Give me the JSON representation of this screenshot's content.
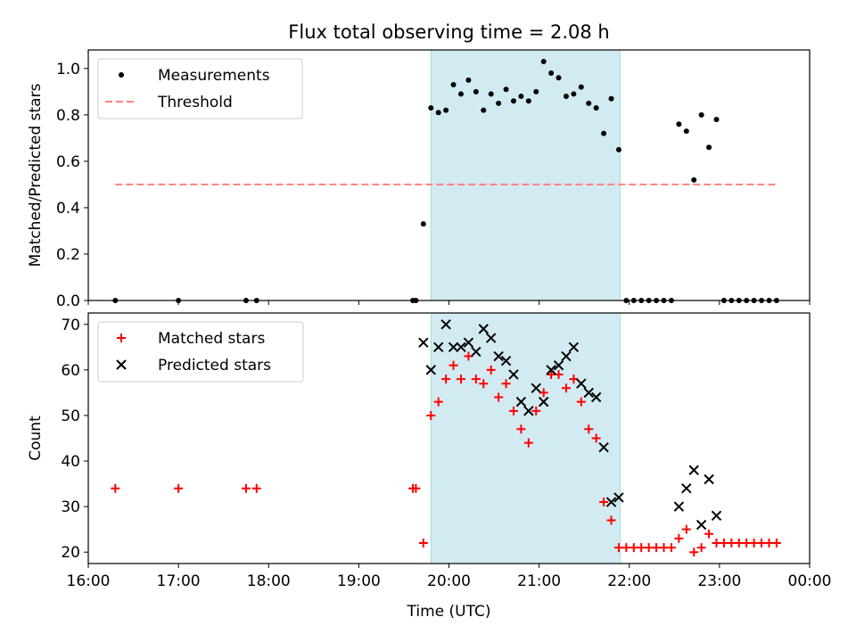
{
  "chart_data": [
    {
      "type": "scatter",
      "title": "Flux total observing time = 2.08 h",
      "xlabel": "",
      "ylabel": "Matched/Predicted stars",
      "xlim": [
        "16:00",
        "00:00"
      ],
      "ylim": [
        0,
        1.08
      ],
      "yticks": [
        "0.0",
        "0.2",
        "0.4",
        "0.6",
        "0.8",
        "1.0"
      ],
      "grid": false,
      "legend_position": "upper-left",
      "highlight_span": {
        "start": "19:48",
        "end": "21:54",
        "color": "#add8e6"
      },
      "series": [
        {
          "name": "Measurements",
          "marker": "dot",
          "color": "#000000",
          "points": [
            [
              "16:18",
              0.0
            ],
            [
              "17:00",
              0.0
            ],
            [
              "17:45",
              0.0
            ],
            [
              "17:52",
              0.0
            ],
            [
              "19:36",
              0.0
            ],
            [
              "19:38",
              0.0
            ],
            [
              "19:43",
              0.33
            ],
            [
              "19:48",
              0.83
            ],
            [
              "19:53",
              0.81
            ],
            [
              "19:58",
              0.82
            ],
            [
              "20:03",
              0.93
            ],
            [
              "20:08",
              0.89
            ],
            [
              "20:13",
              0.95
            ],
            [
              "20:18",
              0.9
            ],
            [
              "20:23",
              0.82
            ],
            [
              "20:28",
              0.89
            ],
            [
              "20:33",
              0.85
            ],
            [
              "20:38",
              0.91
            ],
            [
              "20:43",
              0.86
            ],
            [
              "20:48",
              0.88
            ],
            [
              "20:53",
              0.86
            ],
            [
              "20:58",
              0.9
            ],
            [
              "21:03",
              1.03
            ],
            [
              "21:08",
              0.98
            ],
            [
              "21:13",
              0.96
            ],
            [
              "21:18",
              0.88
            ],
            [
              "21:23",
              0.89
            ],
            [
              "21:28",
              0.92
            ],
            [
              "21:33",
              0.85
            ],
            [
              "21:38",
              0.83
            ],
            [
              "21:43",
              0.72
            ],
            [
              "21:48",
              0.87
            ],
            [
              "21:53",
              0.65
            ],
            [
              "21:58",
              0.0
            ],
            [
              "22:03",
              0.0
            ],
            [
              "22:08",
              0.0
            ],
            [
              "22:13",
              0.0
            ],
            [
              "22:18",
              0.0
            ],
            [
              "22:23",
              0.0
            ],
            [
              "22:28",
              0.0
            ],
            [
              "22:33",
              0.76
            ],
            [
              "22:38",
              0.73
            ],
            [
              "22:43",
              0.52
            ],
            [
              "22:48",
              0.8
            ],
            [
              "22:53",
              0.66
            ],
            [
              "22:58",
              0.78
            ],
            [
              "23:03",
              0.0
            ],
            [
              "23:08",
              0.0
            ],
            [
              "23:13",
              0.0
            ],
            [
              "23:18",
              0.0
            ],
            [
              "23:23",
              0.0
            ],
            [
              "23:28",
              0.0
            ],
            [
              "23:33",
              0.0
            ],
            [
              "23:38",
              0.0
            ]
          ]
        },
        {
          "name": "Threshold",
          "marker": "dashed-line",
          "color": "#ff8080",
          "points": [
            [
              "16:18",
              0.5
            ],
            [
              "23:38",
              0.5
            ]
          ]
        }
      ]
    },
    {
      "type": "scatter",
      "title": "",
      "xlabel": "Time (UTC)",
      "ylabel": "Count",
      "xlim": [
        "16:00",
        "00:00"
      ],
      "ylim": [
        17.5,
        72.5
      ],
      "xticks": [
        "16:00",
        "17:00",
        "18:00",
        "19:00",
        "20:00",
        "21:00",
        "22:00",
        "23:00",
        "00:00"
      ],
      "yticks": [
        "20",
        "30",
        "40",
        "50",
        "60",
        "70"
      ],
      "grid": false,
      "legend_position": "upper-left",
      "highlight_span": {
        "start": "19:48",
        "end": "21:54",
        "color": "#add8e6"
      },
      "series": [
        {
          "name": "Matched stars",
          "marker": "plus",
          "color": "#ff0000",
          "points": [
            [
              "16:18",
              34
            ],
            [
              "17:00",
              34
            ],
            [
              "17:45",
              34
            ],
            [
              "17:52",
              34
            ],
            [
              "19:36",
              34
            ],
            [
              "19:38",
              34
            ],
            [
              "19:43",
              22
            ],
            [
              "19:48",
              50
            ],
            [
              "19:53",
              53
            ],
            [
              "19:58",
              58
            ],
            [
              "20:03",
              61
            ],
            [
              "20:08",
              58
            ],
            [
              "20:13",
              63
            ],
            [
              "20:18",
              58
            ],
            [
              "20:23",
              57
            ],
            [
              "20:28",
              60
            ],
            [
              "20:33",
              54
            ],
            [
              "20:38",
              57
            ],
            [
              "20:43",
              51
            ],
            [
              "20:48",
              47
            ],
            [
              "20:53",
              44
            ],
            [
              "20:58",
              51
            ],
            [
              "21:03",
              55
            ],
            [
              "21:08",
              59
            ],
            [
              "21:13",
              59
            ],
            [
              "21:18",
              56
            ],
            [
              "21:23",
              58
            ],
            [
              "21:28",
              53
            ],
            [
              "21:33",
              47
            ],
            [
              "21:38",
              45
            ],
            [
              "21:43",
              31
            ],
            [
              "21:48",
              27
            ],
            [
              "21:53",
              21
            ],
            [
              "21:58",
              21
            ],
            [
              "22:03",
              21
            ],
            [
              "22:08",
              21
            ],
            [
              "22:13",
              21
            ],
            [
              "22:18",
              21
            ],
            [
              "22:23",
              21
            ],
            [
              "22:28",
              21
            ],
            [
              "22:33",
              23
            ],
            [
              "22:38",
              25
            ],
            [
              "22:43",
              20
            ],
            [
              "22:48",
              21
            ],
            [
              "22:53",
              24
            ],
            [
              "22:58",
              22
            ],
            [
              "23:03",
              22
            ],
            [
              "23:08",
              22
            ],
            [
              "23:13",
              22
            ],
            [
              "23:18",
              22
            ],
            [
              "23:23",
              22
            ],
            [
              "23:28",
              22
            ],
            [
              "23:33",
              22
            ],
            [
              "23:38",
              22
            ]
          ]
        },
        {
          "name": "Predicted stars",
          "marker": "x",
          "color": "#000000",
          "points": [
            [
              "19:43",
              66
            ],
            [
              "19:48",
              60
            ],
            [
              "19:53",
              65
            ],
            [
              "19:58",
              70
            ],
            [
              "20:03",
              65
            ],
            [
              "20:08",
              65
            ],
            [
              "20:13",
              66
            ],
            [
              "20:18",
              64
            ],
            [
              "20:23",
              69
            ],
            [
              "20:28",
              67
            ],
            [
              "20:33",
              63
            ],
            [
              "20:38",
              62
            ],
            [
              "20:43",
              59
            ],
            [
              "20:48",
              53
            ],
            [
              "20:53",
              51
            ],
            [
              "20:58",
              56
            ],
            [
              "21:03",
              53
            ],
            [
              "21:08",
              60
            ],
            [
              "21:13",
              61
            ],
            [
              "21:18",
              63
            ],
            [
              "21:23",
              65
            ],
            [
              "21:28",
              57
            ],
            [
              "21:33",
              55
            ],
            [
              "21:38",
              54
            ],
            [
              "21:43",
              43
            ],
            [
              "21:48",
              31
            ],
            [
              "21:53",
              32
            ],
            [
              "22:33",
              30
            ],
            [
              "22:38",
              34
            ],
            [
              "22:43",
              38
            ],
            [
              "22:48",
              26
            ],
            [
              "22:53",
              36
            ],
            [
              "22:58",
              28
            ]
          ]
        }
      ]
    }
  ]
}
